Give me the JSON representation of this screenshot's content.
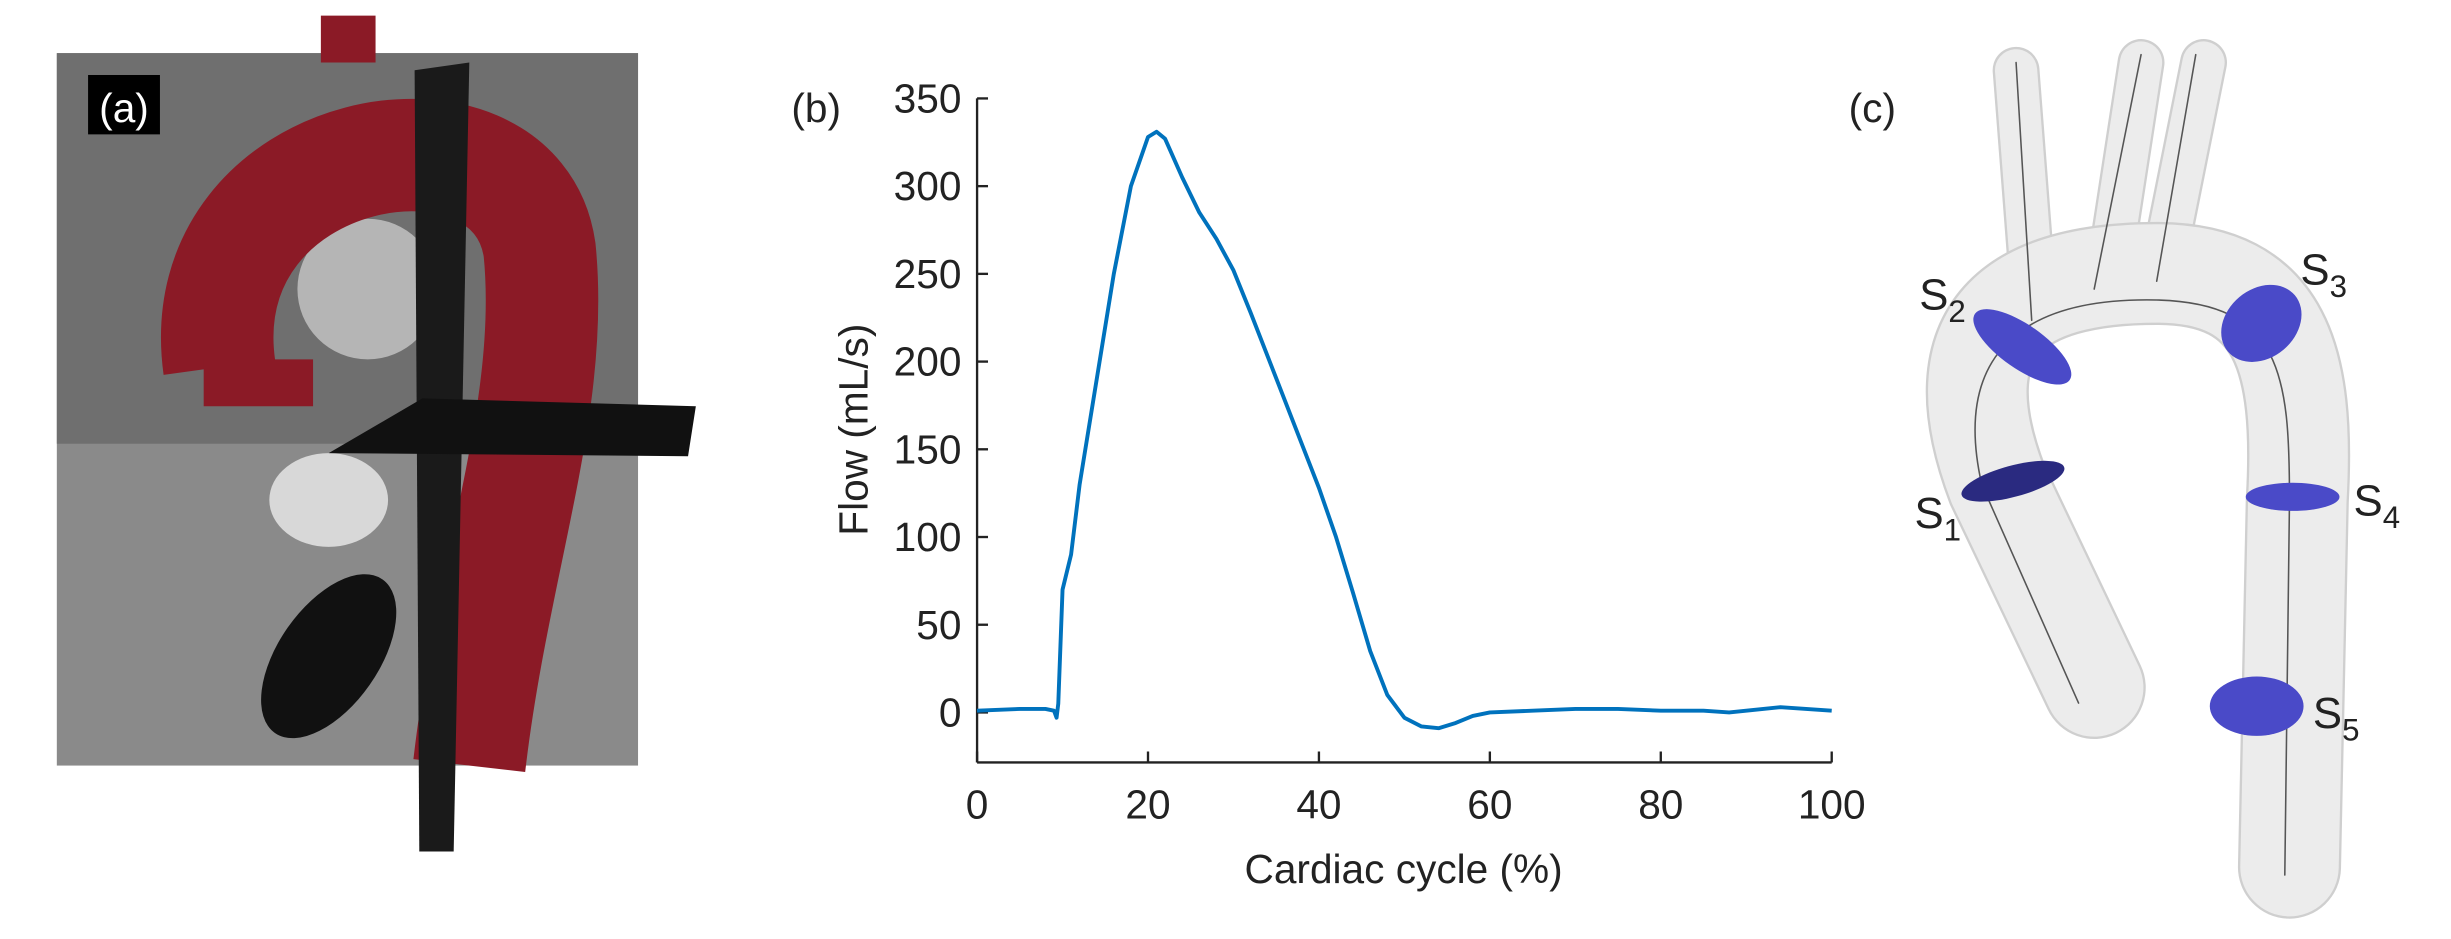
{
  "panels": {
    "a": {
      "label": "(a)"
    },
    "c": {
      "label": "(c)",
      "sections": [
        {
          "letter": "S",
          "index": "1"
        },
        {
          "letter": "S",
          "index": "2"
        },
        {
          "letter": "S",
          "index": "3"
        },
        {
          "letter": "S",
          "index": "4"
        },
        {
          "letter": "S",
          "index": "5"
        }
      ]
    }
  },
  "chart_data": {
    "type": "line",
    "label": "(b)",
    "x_label": "Cardiac cycle (%)",
    "y_label": "Flow (mL/s)",
    "x": [
      0,
      5,
      8,
      9,
      9.3,
      9.5,
      10,
      11,
      12,
      14,
      16,
      18,
      20,
      21,
      22,
      24,
      26,
      28,
      30,
      32,
      34,
      36,
      38,
      40,
      42,
      44,
      46,
      48,
      50,
      52,
      54,
      56,
      58,
      60,
      65,
      70,
      75,
      80,
      85,
      88,
      90,
      94,
      97,
      100
    ],
    "values": [
      1,
      2,
      2,
      1,
      -3,
      5,
      70,
      90,
      130,
      190,
      250,
      300,
      328,
      331,
      327,
      305,
      285,
      270,
      252,
      228,
      203,
      178,
      153,
      128,
      100,
      68,
      35,
      10,
      -3,
      -8,
      -9,
      -6,
      -2,
      0,
      1,
      2,
      2,
      1,
      1,
      0,
      1,
      3,
      2,
      1
    ],
    "color": "#0072bd",
    "xlim": [
      0,
      100
    ],
    "ylim": [
      -28.5,
      350
    ],
    "xticks": [
      0,
      20,
      40,
      60,
      80,
      100
    ],
    "yticks": [
      0,
      50,
      100,
      150,
      200,
      250,
      300,
      350
    ]
  }
}
